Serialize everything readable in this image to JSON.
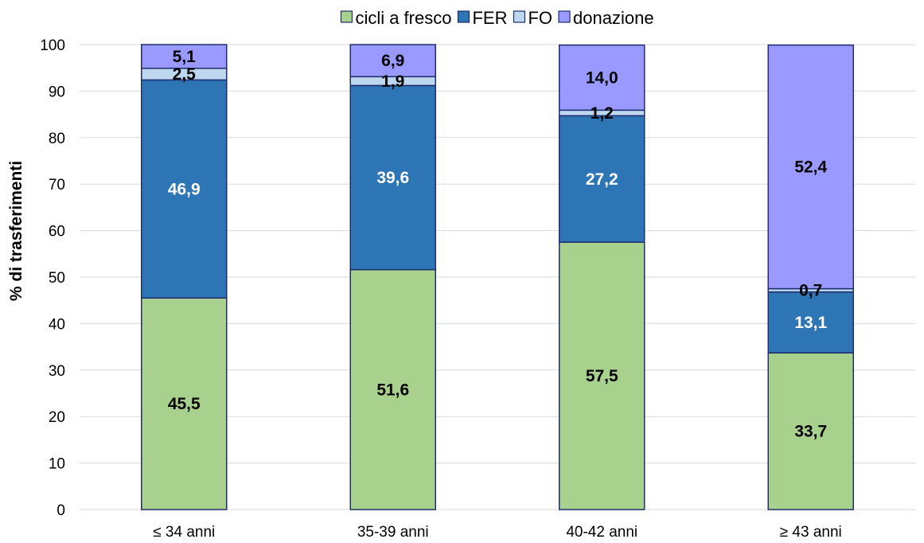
{
  "chart_data": {
    "type": "bar",
    "stacked": true,
    "title": "",
    "xlabel": "",
    "ylabel": "% di trasferimenti",
    "ylim": [
      0,
      100
    ],
    "yticks": [
      0,
      10,
      20,
      30,
      40,
      50,
      60,
      70,
      80,
      90,
      100
    ],
    "grid": true,
    "legend_position": "top",
    "categories": [
      "≤ 34 anni",
      "35-39 anni",
      "40-42 anni",
      "≥ 43 anni"
    ],
    "series": [
      {
        "name": "cicli a fresco",
        "color": "#a9d18e",
        "label_color": "#000000",
        "values": [
          45.5,
          51.6,
          57.5,
          33.7
        ],
        "labels": [
          "45,5",
          "51,6",
          "57,5",
          "33,7"
        ]
      },
      {
        "name": "FER",
        "color": "#2e75b6",
        "label_color": "#ffffff",
        "values": [
          46.9,
          39.6,
          27.2,
          13.1
        ],
        "labels": [
          "46,9",
          "39,6",
          "27,2",
          "13,1"
        ]
      },
      {
        "name": "FO",
        "color": "#bdd7ee",
        "label_color": "#000000",
        "values": [
          2.5,
          1.9,
          1.2,
          0.7
        ],
        "labels": [
          "2,5",
          "1,9",
          "1,2",
          "0,7"
        ]
      },
      {
        "name": "donazione",
        "color": "#9999ff",
        "label_color": "#000000",
        "values": [
          5.1,
          6.9,
          14.0,
          52.4
        ],
        "labels": [
          "5,1",
          "6,9",
          "14,0",
          "52,4"
        ]
      }
    ]
  }
}
